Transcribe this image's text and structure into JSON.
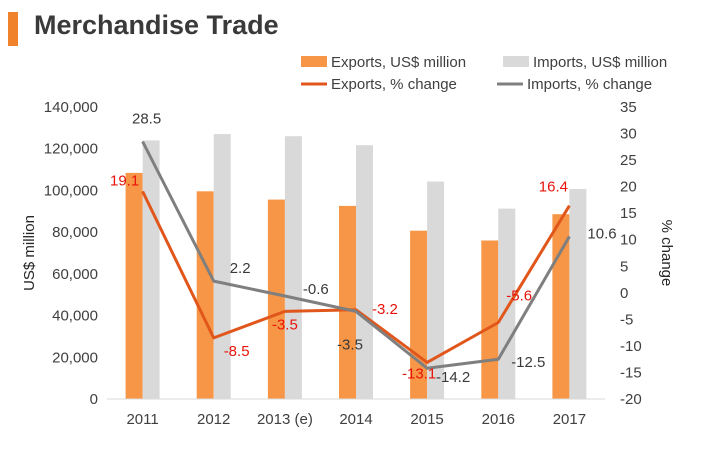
{
  "header": {
    "title": "Merchandise Trade",
    "accent_color": "#f0822b"
  },
  "chart_data": {
    "type": "bar",
    "categories": [
      "2011",
      "2012",
      "2013 (e)",
      "2014",
      "2015",
      "2016",
      "2017"
    ],
    "series": [
      {
        "name": "Exports, US$ million",
        "kind": "bar",
        "axis": "left",
        "color": "#f79646",
        "values": [
          108400,
          99600,
          95600,
          92600,
          80700,
          76000,
          88600
        ]
      },
      {
        "name": "Imports, US$ million",
        "kind": "bar",
        "axis": "left",
        "color": "#d9d9d9",
        "values": [
          124000,
          127000,
          126000,
          121700,
          104300,
          91300,
          100700
        ]
      },
      {
        "name": "Exports, % change",
        "kind": "line",
        "axis": "right",
        "color": "#e0561b",
        "label_color": "#e8130a",
        "values": [
          19.1,
          -8.5,
          -3.5,
          -3.2,
          -13.1,
          -5.6,
          16.4
        ]
      },
      {
        "name": "Imports, % change",
        "kind": "line",
        "axis": "right",
        "color": "#7f7f7f",
        "label_color": "#3a3a3a",
        "values": [
          28.5,
          2.2,
          -0.6,
          -3.5,
          -14.2,
          -12.5,
          10.6
        ]
      }
    ],
    "ylabel": "US$ million",
    "y2label": "% change",
    "ylim": [
      0,
      140000
    ],
    "y2lim": [
      -20,
      35
    ],
    "yticks": [
      "0",
      "20,000",
      "40,000",
      "60,000",
      "80,000",
      "100,000",
      "120,000",
      "140,000"
    ],
    "y2ticks": [
      "-20",
      "-15",
      "-10",
      "-5",
      "0",
      "5",
      "10",
      "15",
      "20",
      "25",
      "30",
      "35"
    ],
    "legend_position": "top",
    "grid": false
  }
}
